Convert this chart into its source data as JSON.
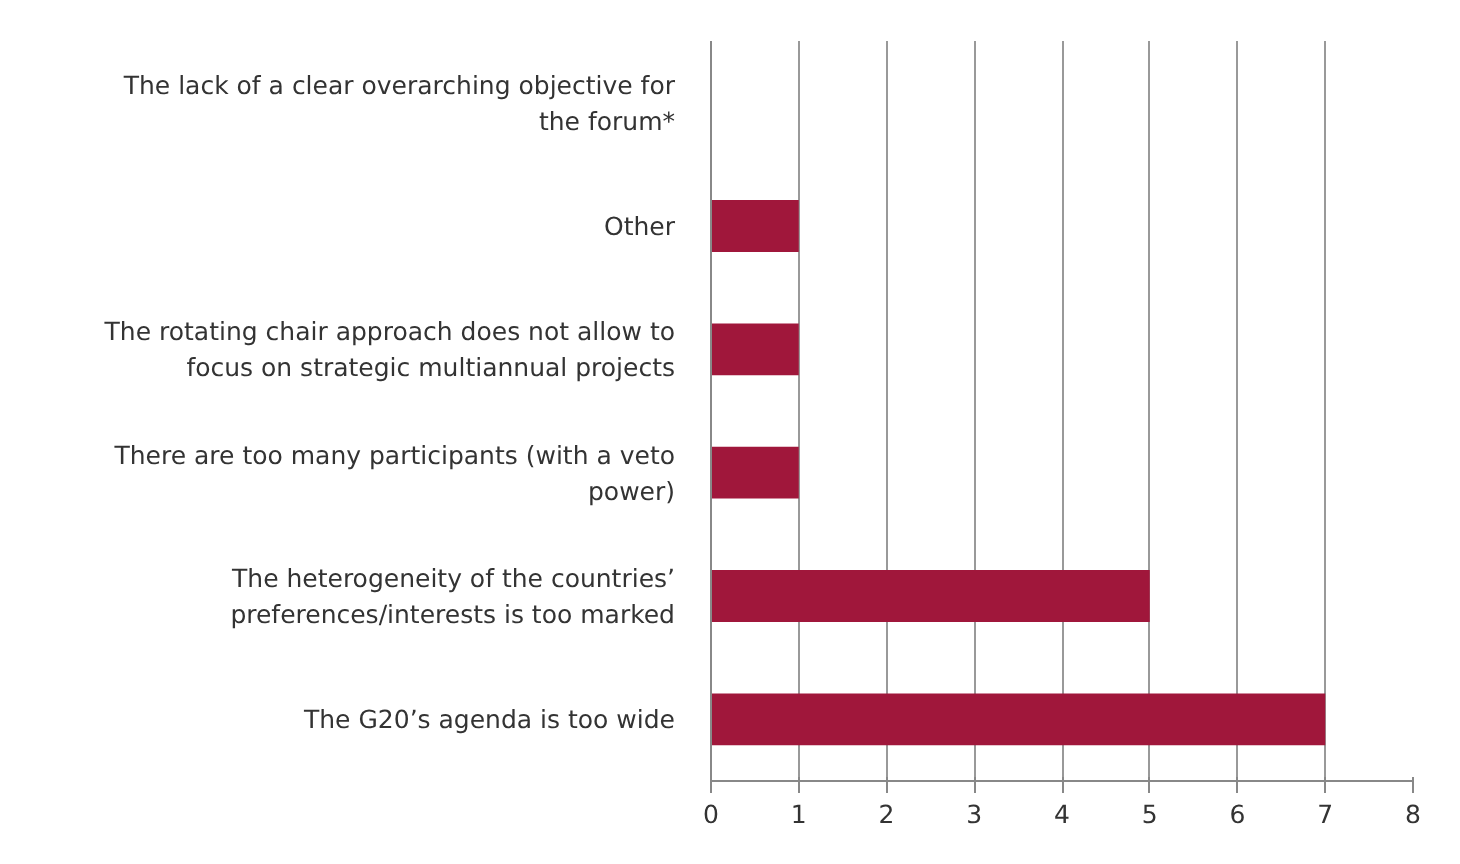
{
  "chart_data": {
    "type": "bar",
    "orientation": "horizontal",
    "categories": [
      "The lack of a clear overarching objective for the forum*",
      "Other",
      "The rotating chair approach does not allow to focus on strategic multiannual projects",
      "There are too many participants (with a veto power)",
      "The heterogeneity of the countries’ preferences/interests is too marked",
      "The G20’s agenda is too wide"
    ],
    "values": [
      0,
      1,
      1,
      1,
      5,
      7
    ],
    "color": "#a0173b",
    "xlim": [
      0,
      8
    ],
    "xticks": [
      0,
      1,
      2,
      3,
      4,
      5,
      6,
      7,
      8
    ],
    "grid": "x"
  }
}
